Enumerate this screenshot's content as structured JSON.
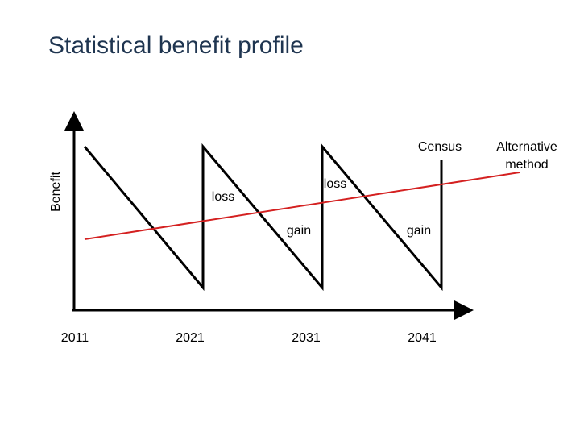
{
  "title": "Statistical benefit profile",
  "axis_label": "Benefit",
  "annotations": {
    "census": "Census",
    "alternative": "Alternative method",
    "loss": [
      "loss",
      "loss"
    ],
    "gain": [
      "gain",
      "gain"
    ]
  },
  "x_labels": [
    "2011",
    "2021",
    "2031",
    "2041"
  ]
}
